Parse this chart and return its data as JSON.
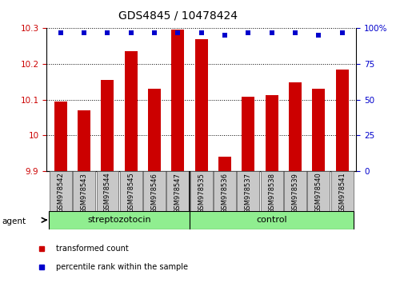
{
  "title": "GDS4845 / 10478424",
  "samples": [
    "GSM978542",
    "GSM978543",
    "GSM978544",
    "GSM978545",
    "GSM978546",
    "GSM978547",
    "GSM978535",
    "GSM978536",
    "GSM978537",
    "GSM978538",
    "GSM978539",
    "GSM978540",
    "GSM978541"
  ],
  "red_values": [
    10.095,
    10.07,
    10.155,
    10.235,
    10.13,
    10.297,
    10.27,
    9.94,
    10.108,
    10.112,
    10.148,
    10.13,
    10.185
  ],
  "blue_values": [
    97,
    97,
    97,
    97,
    97,
    97,
    97,
    95,
    97,
    97,
    97,
    95,
    97
  ],
  "ylim_left": [
    9.9,
    10.3
  ],
  "ylim_right": [
    0,
    100
  ],
  "yticks_left": [
    9.9,
    10.0,
    10.1,
    10.2,
    10.3
  ],
  "yticks_right": [
    0,
    25,
    50,
    75,
    100
  ],
  "group1_label": "streptozotocin",
  "group2_label": "control",
  "group1_count": 6,
  "group2_count": 7,
  "agent_label": "agent",
  "bar_color": "#cc0000",
  "dot_color": "#0000cc",
  "bar_bottom": 9.9,
  "legend_red": "transformed count",
  "legend_blue": "percentile rank within the sample",
  "bg_plot": "#ffffff",
  "bg_xticklabel": "#c8c8c8",
  "bg_group": "#90ee90",
  "title_fontsize": 10,
  "tick_fontsize": 7.5,
  "sample_fontsize": 6,
  "group_fontsize": 8,
  "legend_fontsize": 7
}
